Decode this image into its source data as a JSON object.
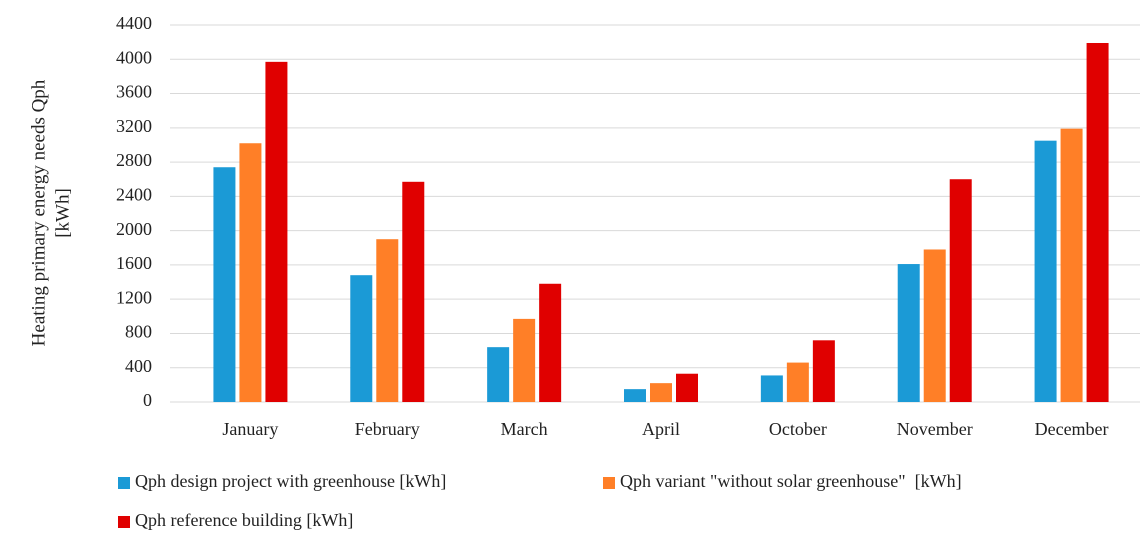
{
  "chart_data": {
    "type": "bar",
    "y_label": [
      "Heating primary energy needs Qph",
      "[kWh]"
    ],
    "categories": [
      "January",
      "February",
      "March",
      "April",
      "October",
      "November",
      "December"
    ],
    "series": [
      {
        "name": "Qph design project with greenhouse [kWh]",
        "color": "#1b9ad6",
        "values": [
          2740,
          1480,
          640,
          150,
          310,
          1610,
          3050
        ]
      },
      {
        "name": "Qph variant \"without solar greenhouse\"  [kWh]",
        "color": "#ff7f27",
        "values": [
          3020,
          1900,
          970,
          220,
          460,
          1780,
          3190
        ]
      },
      {
        "name": "Qph reference building [kWh]",
        "color": "#e00000",
        "values": [
          3970,
          2570,
          1380,
          330,
          720,
          2600,
          4190
        ]
      }
    ],
    "ylim": [
      0,
      4400
    ],
    "yticks": [
      0,
      400,
      800,
      1200,
      1600,
      2000,
      2400,
      2800,
      3200,
      3600,
      4000,
      4400
    ],
    "grid": true
  }
}
